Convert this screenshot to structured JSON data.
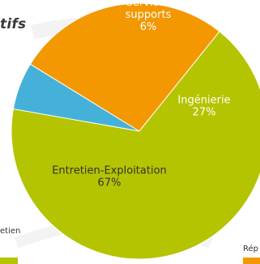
{
  "title_fragment": "tifs",
  "legend": {
    "left_text": "etien",
    "right_text": "Rép"
  },
  "chart_data": {
    "type": "pie",
    "title": "",
    "slices": [
      {
        "label": "Services supports",
        "label_lines": [
          "Services",
          "supports"
        ],
        "value": 6,
        "value_label": "6%",
        "color": "#45b1d8"
      },
      {
        "label": "Ingénierie",
        "label_lines": [
          "Ingénierie"
        ],
        "value": 27,
        "value_label": "27%",
        "color": "#f39800"
      },
      {
        "label": "Entretien-Exploitation",
        "label_lines": [
          "Entretien-Exploitation"
        ],
        "value": 67,
        "value_label": "67%",
        "color": "#b5c400"
      }
    ]
  }
}
